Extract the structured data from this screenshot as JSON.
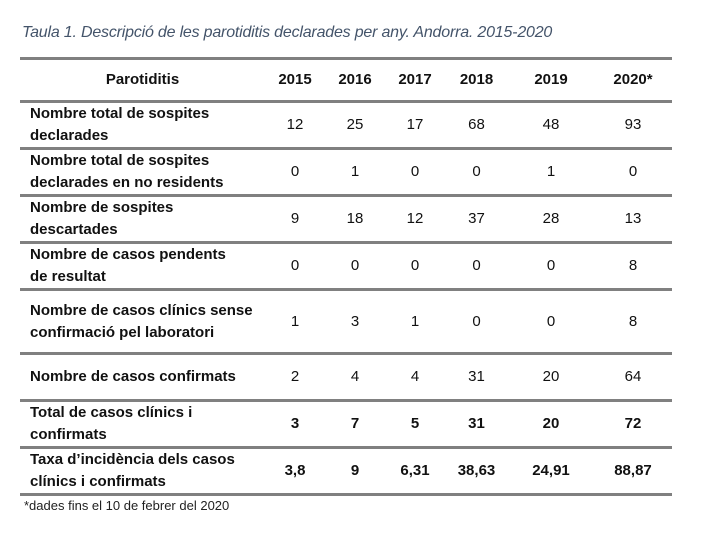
{
  "title": "Taula 1. Descripció de les parotiditis declarades per any. Andorra. 2015-2020",
  "table": {
    "headers": [
      "Parotiditis",
      "2015",
      "2016",
      "2017",
      "2018",
      "2019",
      "2020*"
    ],
    "rows": [
      {
        "label": "Nombre total de sospites declarades",
        "values": [
          "12",
          "25",
          "17",
          "68",
          "48",
          "93"
        ]
      },
      {
        "label": "Nombre total de sospites declarades en no residents",
        "values": [
          "0",
          "1",
          "0",
          "0",
          "1",
          "0"
        ]
      },
      {
        "label": "Nombre de sospites descartades",
        "values": [
          "9",
          "18",
          "12",
          "37",
          "28",
          "13"
        ]
      },
      {
        "label": "Nombre de casos pendents de resultat",
        "values": [
          "0",
          "0",
          "0",
          "0",
          "0",
          "8"
        ]
      },
      {
        "label": "Nombre de casos clínics sense confirmació pel laboratori",
        "values": [
          "1",
          "3",
          "1",
          "0",
          "0",
          "8"
        ]
      },
      {
        "label": "Nombre de casos confirmats",
        "values": [
          "2",
          "4",
          "4",
          "31",
          "20",
          "64"
        ]
      },
      {
        "label": "Total de casos clínics i confirmats",
        "values": [
          "3",
          "7",
          "5",
          "31",
          "20",
          "72"
        ]
      },
      {
        "label": "Taxa d’incidència dels casos clínics i confirmats",
        "values": [
          "3,8",
          "9",
          "6,31",
          "38,63",
          "24,91",
          "88,87"
        ]
      }
    ]
  },
  "footnote": "*dades fins el 10 de febrer del 2020"
}
